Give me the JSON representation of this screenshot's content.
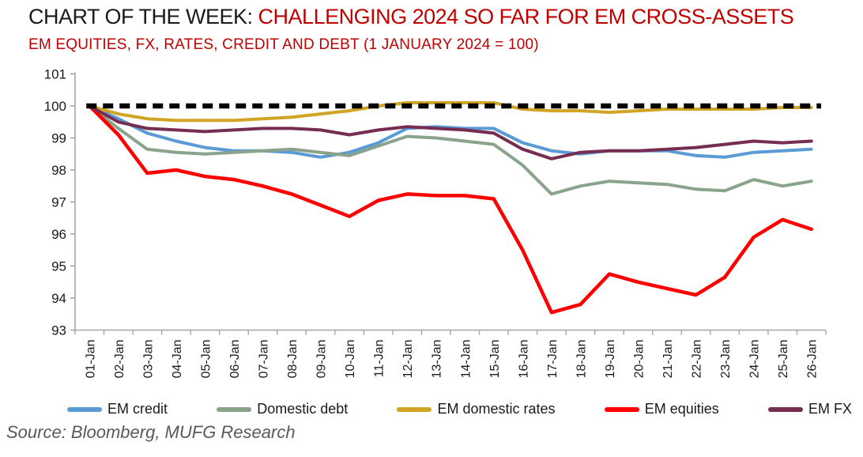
{
  "header": {
    "title_prefix": "CHART OF THE WEEK: ",
    "title_highlight": "CHALLENGING 2024 SO FAR FOR EM CROSS-ASSETS",
    "subtitle": "EM EQUITIES, FX, RATES, CREDIT AND DEBT (1 JANUARY 2024 = 100)"
  },
  "source": "Source: Bloomberg, MUFG Research",
  "colors": {
    "title_black": "#1a1a1a",
    "title_red": "#c00000",
    "axis": "#a6a6a6",
    "baseline": "#000000"
  },
  "chart_data": {
    "type": "line",
    "title": "CHART OF THE WEEK: CHALLENGING 2024 SO FAR FOR EM CROSS-ASSETS",
    "subtitle": "EM EQUITIES, FX, RATES, CREDIT AND DEBT (1 JANUARY 2024 = 100)",
    "categories": [
      "01-Jan",
      "02-Jan",
      "03-Jan",
      "04-Jan",
      "05-Jan",
      "06-Jan",
      "07-Jan",
      "08-Jan",
      "09-Jan",
      "10-Jan",
      "11-Jan",
      "12-Jan",
      "13-Jan",
      "14-Jan",
      "15-Jan",
      "16-Jan",
      "17-Jan",
      "18-Jan",
      "19-Jan",
      "20-Jan",
      "21-Jan",
      "22-Jan",
      "23-Jan",
      "24-Jan",
      "25-Jan",
      "26-Jan"
    ],
    "series": [
      {
        "name": "EM credit",
        "color": "#5b9bd5",
        "width": 4,
        "values": [
          100,
          99.6,
          99.15,
          98.9,
          98.7,
          98.6,
          98.6,
          98.55,
          98.4,
          98.55,
          98.85,
          99.3,
          99.35,
          99.3,
          99.3,
          98.85,
          98.6,
          98.5,
          98.6,
          98.6,
          98.6,
          98.45,
          98.4,
          98.55,
          98.6,
          98.65
        ]
      },
      {
        "name": "Domestic debt",
        "color": "#8aa38b",
        "width": 4,
        "values": [
          100,
          99.3,
          98.65,
          98.55,
          98.5,
          98.55,
          98.6,
          98.65,
          98.55,
          98.45,
          98.75,
          99.05,
          99.0,
          98.9,
          98.8,
          98.15,
          97.25,
          97.5,
          97.65,
          97.6,
          97.55,
          97.4,
          97.35,
          97.7,
          97.5,
          97.65
        ]
      },
      {
        "name": "EM domestic rates",
        "color": "#d2a425",
        "width": 4,
        "values": [
          100,
          99.75,
          99.6,
          99.55,
          99.55,
          99.55,
          99.6,
          99.65,
          99.75,
          99.85,
          100.0,
          100.1,
          100.1,
          100.1,
          100.1,
          99.9,
          99.85,
          99.85,
          99.8,
          99.85,
          99.9,
          99.9,
          99.9,
          99.9,
          99.95,
          99.95
        ]
      },
      {
        "name": "EM equities",
        "color": "#fe0000",
        "width": 4.5,
        "values": [
          100,
          99.1,
          97.9,
          98.0,
          97.8,
          97.7,
          97.5,
          97.25,
          96.9,
          96.55,
          97.05,
          97.25,
          97.2,
          97.2,
          97.1,
          95.5,
          93.55,
          93.8,
          94.75,
          94.5,
          94.3,
          94.1,
          94.65,
          95.9,
          96.45,
          96.15
        ]
      },
      {
        "name": "EM FX",
        "color": "#772d52",
        "width": 4,
        "values": [
          100,
          99.5,
          99.3,
          99.25,
          99.2,
          99.25,
          99.3,
          99.3,
          99.25,
          99.1,
          99.25,
          99.35,
          99.3,
          99.25,
          99.15,
          98.65,
          98.35,
          98.55,
          98.6,
          98.6,
          98.65,
          98.7,
          98.8,
          98.9,
          98.85,
          98.9
        ]
      }
    ],
    "baseline": {
      "value": 100,
      "style": "dashed",
      "color": "#000000"
    },
    "xlabel": "",
    "ylabel": "",
    "ylim": [
      93,
      101
    ],
    "y_ticks": [
      101,
      100,
      99,
      98,
      97,
      96,
      95,
      94,
      93
    ],
    "grid": false,
    "legend_position": "bottom"
  }
}
